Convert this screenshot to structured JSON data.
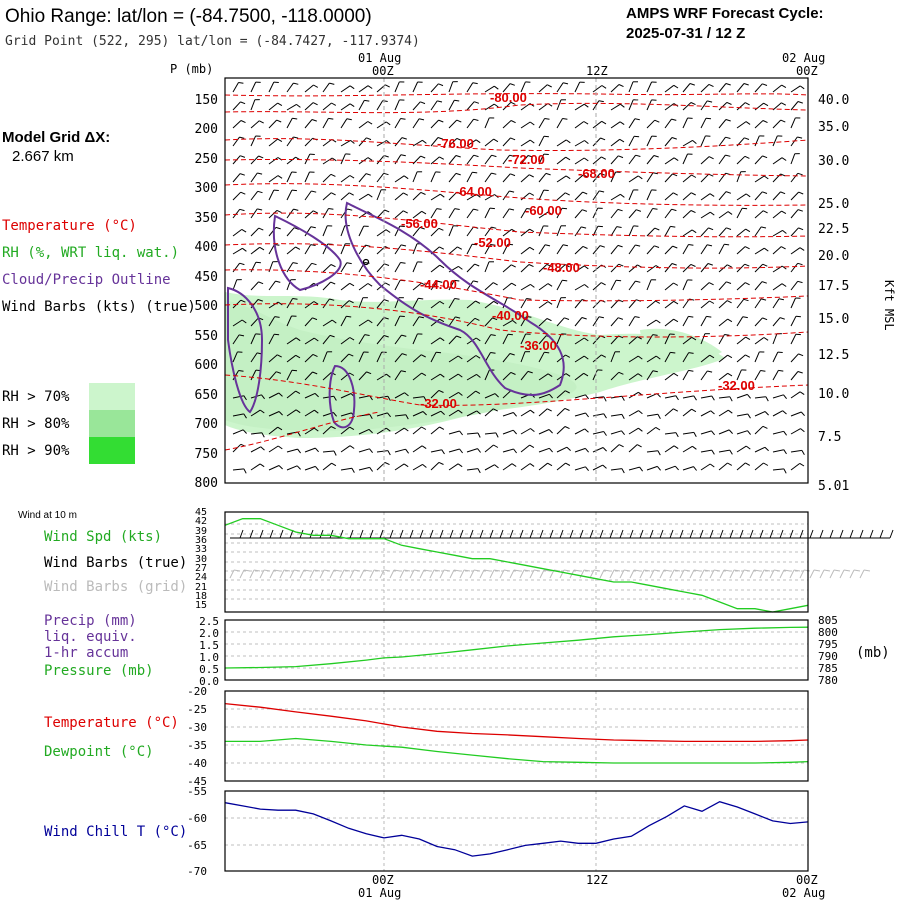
{
  "header": {
    "title": "Ohio Range:  lat/lon = (-84.7500, -118.0000)",
    "grid_point": "Grid Point (522, 295) lat/lon = (-84.7427, -117.9374)",
    "forecast_label": "AMPS WRF Forecast Cycle:",
    "forecast_cycle": "2025-07-31 / 12  Z"
  },
  "model_grid": {
    "label": "Model Grid ΔX:",
    "value": "2.667 km"
  },
  "legend": {
    "temperature": "Temperature (°C)",
    "rh": "RH (%, WRT liq. wat.)",
    "cloud": "Cloud/Precip Outline",
    "wind": "Wind Barbs (kts) (true)",
    "rh70": "RH > 70%",
    "rh80": "RH > 80%",
    "rh90": "RH > 90%"
  },
  "colors": {
    "temperature": "#dd0000",
    "rh": "#22aa22",
    "cloud": "#663399",
    "wind_true": "#000000",
    "wind_grid": "#bbbbbb",
    "wind_chill": "#000099",
    "rh70": "#ccf5cc",
    "rh80": "#99e699",
    "rh90": "#33dd33",
    "grid": "#aaaaaa"
  },
  "time_axis": {
    "top_dates": [
      "01 Aug",
      "02 Aug"
    ],
    "bottom_dates": [
      "01 Aug",
      "02 Aug"
    ],
    "tick_labels": [
      "00Z",
      "12Z",
      "00Z"
    ]
  },
  "chart_data": [
    {
      "type": "line",
      "title": "",
      "xlabel": "",
      "ylabel": "P (mb)",
      "x_range_hours": [
        -9,
        24
      ],
      "pressure_ticks": [
        150,
        200,
        250,
        300,
        350,
        400,
        450,
        500,
        550,
        600,
        650,
        700,
        750,
        800
      ],
      "right_axis_label": "Kft MSL",
      "right_axis_ticks": [
        "40.0",
        "35.0",
        "30.0",
        "25.0",
        "22.5",
        "20.0",
        "17.5",
        "15.0",
        "12.5",
        "10.0",
        "7.5",
        "5.01"
      ],
      "temperature_labels": [
        "-80.00",
        "-76.00",
        "-72.00",
        "-68.00",
        "-64.00",
        "-60.00",
        "-56.00",
        "-52.00",
        "-48.00",
        "-44.00",
        "-40.00",
        "-36.00",
        "-32.00",
        "-32.00"
      ],
      "series": [
        {
          "name": "Temperature (°C)"
        },
        {
          "name": "RH (%, WRT liq. wat.)"
        },
        {
          "name": "Cloud/Precip Outline"
        },
        {
          "name": "Wind Barbs (kts) (true)"
        }
      ]
    },
    {
      "type": "line",
      "title": "Wind at 10 m",
      "ylim": [
        15,
        45
      ],
      "y_ticks": [
        "45",
        "42",
        "39",
        "36",
        "33",
        "30",
        "27",
        "24",
        "21",
        "18",
        "15"
      ],
      "x_hours": [
        -9,
        -8,
        -7,
        -6,
        -5,
        -4,
        -3,
        -2,
        -1,
        0,
        1,
        2,
        3,
        4,
        5,
        6,
        7,
        8,
        9,
        10,
        11,
        12,
        13,
        14,
        15,
        16,
        17,
        18,
        19,
        20,
        21,
        22,
        23,
        24
      ],
      "series": [
        {
          "name": "Wind Spd (kts)",
          "values": [
            41,
            43,
            43,
            41,
            39,
            38,
            38,
            37,
            37,
            37,
            35,
            34,
            33,
            32,
            31,
            31,
            30,
            29,
            28,
            27,
            26,
            25,
            24,
            24,
            23,
            22,
            21,
            20,
            18,
            16,
            16,
            15,
            16,
            17
          ]
        },
        {
          "name": "Wind Barbs (true)"
        },
        {
          "name": "Wind Barbs (grid)"
        }
      ]
    },
    {
      "type": "line",
      "title": "",
      "ylim_left": [
        0,
        2.5
      ],
      "ylim_right": [
        780,
        805
      ],
      "left_ticks": [
        "2.5",
        "2.0",
        "1.5",
        "1.0",
        "0.5",
        "0.0"
      ],
      "right_ticks": [
        "805",
        "800",
        "795",
        "790",
        "785",
        "780"
      ],
      "right_unit": "(mb)",
      "x_hours": [
        -9,
        -7,
        -5,
        -3,
        -1,
        0,
        1,
        3,
        5,
        7,
        9,
        11,
        13,
        15,
        17,
        19,
        21,
        23,
        24
      ],
      "series": [
        {
          "name": "Precip (mm) liq. equiv. 1-hr accum",
          "label_lines": [
            "Precip (mm)",
            "liq. equiv.",
            "1-hr accum"
          ]
        },
        {
          "name": "Pressure (mb)",
          "values": [
            785.0,
            785.2,
            785.6,
            786.8,
            788.3,
            789.2,
            789.6,
            791.0,
            792.6,
            794.2,
            795.4,
            796.6,
            798.0,
            798.9,
            800.0,
            801.0,
            801.6,
            801.9,
            802.0
          ]
        }
      ]
    },
    {
      "type": "line",
      "title": "",
      "ylim": [
        -45,
        -20
      ],
      "y_ticks": [
        "-20",
        "-25",
        "-30",
        "-35",
        "-40",
        "-45"
      ],
      "x_hours": [
        -9,
        -7,
        -5,
        -3,
        -1,
        1,
        3,
        5,
        7,
        9,
        11,
        13,
        15,
        17,
        19,
        21,
        23,
        24
      ],
      "series": [
        {
          "name": "Temperature (°C)",
          "values": [
            -23.5,
            -24.5,
            -25.8,
            -27.0,
            -28.3,
            -30.0,
            -31.2,
            -31.8,
            -32.2,
            -32.7,
            -33.2,
            -33.6,
            -33.8,
            -34.0,
            -34.0,
            -34.0,
            -33.8,
            -33.6
          ]
        },
        {
          "name": "Dewpoint (°C)",
          "values": [
            -34.0,
            -34.0,
            -33.2,
            -34.0,
            -35.0,
            -35.6,
            -36.8,
            -37.8,
            -38.8,
            -39.6,
            -39.8,
            -40.0,
            -40.0,
            -40.0,
            -40.0,
            -40.0,
            -39.8,
            -39.6
          ]
        }
      ]
    },
    {
      "type": "line",
      "title": "",
      "ylim": [
        -70,
        -55
      ],
      "y_ticks": [
        "-55",
        "-60",
        "-65",
        "-70"
      ],
      "x_hours": [
        -9,
        -8,
        -7,
        -6,
        -5,
        -4,
        -3,
        -2,
        -1,
        0,
        1,
        2,
        3,
        4,
        5,
        6,
        7,
        8,
        9,
        10,
        11,
        12,
        13,
        14,
        15,
        16,
        17,
        18,
        19,
        20,
        21,
        22,
        23,
        24
      ],
      "series": [
        {
          "name": "Wind Chill T (°C)",
          "values": [
            -57.2,
            -57.8,
            -58.4,
            -58.6,
            -58.6,
            -59.3,
            -60.6,
            -62.0,
            -63.0,
            -63.8,
            -63.3,
            -64.0,
            -65.4,
            -66.0,
            -67.2,
            -66.8,
            -66.0,
            -65.2,
            -64.8,
            -64.4,
            -64.8,
            -64.8,
            -64.0,
            -63.5,
            -61.5,
            -59.8,
            -57.8,
            -58.8,
            -57.0,
            -58.0,
            -59.3,
            -60.6,
            -61.1,
            -60.8
          ]
        }
      ]
    }
  ]
}
